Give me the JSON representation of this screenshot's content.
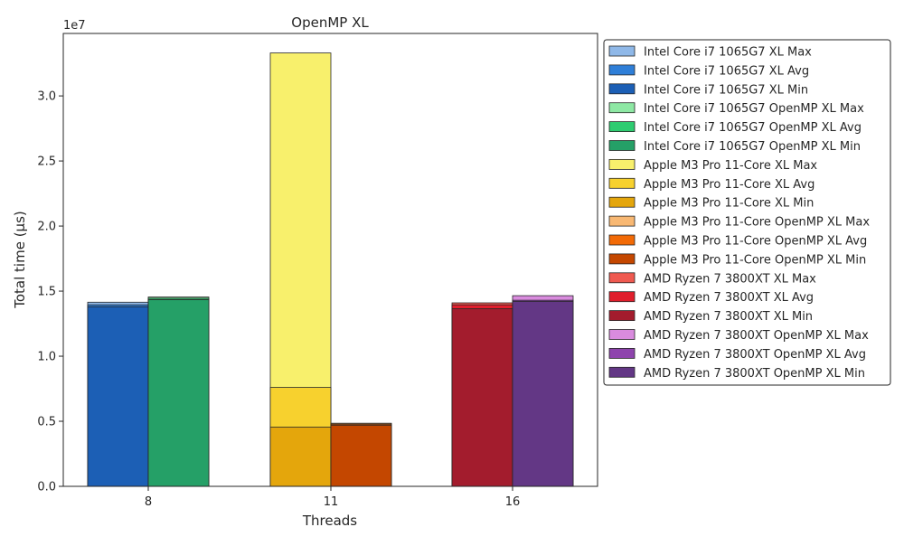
{
  "chart_data": {
    "type": "bar",
    "title": "OpenMP XL",
    "xlabel": "Threads",
    "ylabel": "Total time (µs)",
    "y_scale_label": "1e7",
    "y_scale_factor": 10000000,
    "ylim": [
      0,
      34800000
    ],
    "yticks": [
      0,
      5000000,
      10000000,
      15000000,
      20000000,
      25000000,
      30000000
    ],
    "ytick_labels": [
      "0.0",
      "0.5",
      "1.0",
      "1.5",
      "2.0",
      "2.5",
      "3.0"
    ],
    "categories": [
      "8",
      "11",
      "16"
    ],
    "legend_position": "outside-right",
    "grid": false,
    "series": [
      {
        "name": "Intel Core i7 1065G7 XL Max",
        "category": "8",
        "side": "left",
        "value": 14150000,
        "color": "#8fb8e8"
      },
      {
        "name": "Intel Core i7 1065G7 XL Avg",
        "category": "8",
        "side": "left",
        "value": 13950000,
        "color": "#2f7fd8"
      },
      {
        "name": "Intel Core i7 1065G7 XL Min",
        "category": "8",
        "side": "left",
        "value": 13800000,
        "color": "#1c5fb5"
      },
      {
        "name": "Intel Core i7 1065G7 OpenMP XL Max",
        "category": "8",
        "side": "right",
        "value": 14550000,
        "color": "#8ee8a4"
      },
      {
        "name": "Intel Core i7 1065G7 OpenMP XL Avg",
        "category": "8",
        "side": "right",
        "value": 14450000,
        "color": "#2ecc71"
      },
      {
        "name": "Intel Core i7 1065G7 OpenMP XL Min",
        "category": "8",
        "side": "right",
        "value": 14350000,
        "color": "#25a067"
      },
      {
        "name": "Apple M3 Pro 11-Core XL Max",
        "category": "11",
        "side": "left",
        "value": 33300000,
        "color": "#f8f06c"
      },
      {
        "name": "Apple M3 Pro 11-Core XL Avg",
        "category": "11",
        "side": "left",
        "value": 7600000,
        "color": "#f7d12e"
      },
      {
        "name": "Apple M3 Pro 11-Core XL Min",
        "category": "11",
        "side": "left",
        "value": 4550000,
        "color": "#e4a60c"
      },
      {
        "name": "Apple M3 Pro 11-Core OpenMP XL Max",
        "category": "11",
        "side": "right",
        "value": 4850000,
        "color": "#f8b873"
      },
      {
        "name": "Apple M3 Pro 11-Core OpenMP XL Avg",
        "category": "11",
        "side": "right",
        "value": 4780000,
        "color": "#f26a06"
      },
      {
        "name": "Apple M3 Pro 11-Core OpenMP XL Min",
        "category": "11",
        "side": "right",
        "value": 4700000,
        "color": "#c44700"
      },
      {
        "name": "AMD Ryzen 7 3800XT XL Max",
        "category": "16",
        "side": "left",
        "value": 14100000,
        "color": "#ef5a50"
      },
      {
        "name": "AMD Ryzen 7 3800XT XL Avg",
        "category": "16",
        "side": "left",
        "value": 13950000,
        "color": "#e01e2c"
      },
      {
        "name": "AMD Ryzen 7 3800XT XL Min",
        "category": "16",
        "side": "left",
        "value": 13650000,
        "color": "#a31c2d"
      },
      {
        "name": "AMD Ryzen 7 3800XT OpenMP XL Max",
        "category": "16",
        "side": "right",
        "value": 14650000,
        "color": "#d98bde"
      },
      {
        "name": "AMD Ryzen 7 3800XT OpenMP XL Avg",
        "category": "16",
        "side": "right",
        "value": 14300000,
        "color": "#8e44ad"
      },
      {
        "name": "AMD Ryzen 7 3800XT OpenMP XL Min",
        "category": "16",
        "side": "right",
        "value": 14200000,
        "color": "#633785"
      }
    ]
  }
}
